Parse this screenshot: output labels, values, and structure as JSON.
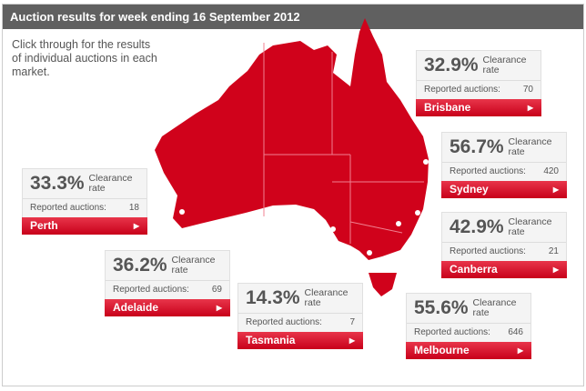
{
  "header": {
    "title": "Auction results for week ending 16 September 2012"
  },
  "intro": "Click through for the results of individual auctions in each market.",
  "colors": {
    "map": "#d0021b",
    "header": "#606060",
    "button": "#d6001c"
  },
  "labels": {
    "clearance_line1": "Clearance",
    "clearance_line2": "rate",
    "reported": "Reported auctions:"
  },
  "markets": [
    {
      "city": "Brisbane",
      "clearance": "32.9%",
      "reported": "70"
    },
    {
      "city": "Sydney",
      "clearance": "56.7%",
      "reported": "420"
    },
    {
      "city": "Perth",
      "clearance": "33.3%",
      "reported": "18"
    },
    {
      "city": "Canberra",
      "clearance": "42.9%",
      "reported": "21"
    },
    {
      "city": "Adelaide",
      "clearance": "36.2%",
      "reported": "69"
    },
    {
      "city": "Tasmania",
      "clearance": "14.3%",
      "reported": "7"
    },
    {
      "city": "Melbourne",
      "clearance": "55.6%",
      "reported": "646"
    }
  ]
}
